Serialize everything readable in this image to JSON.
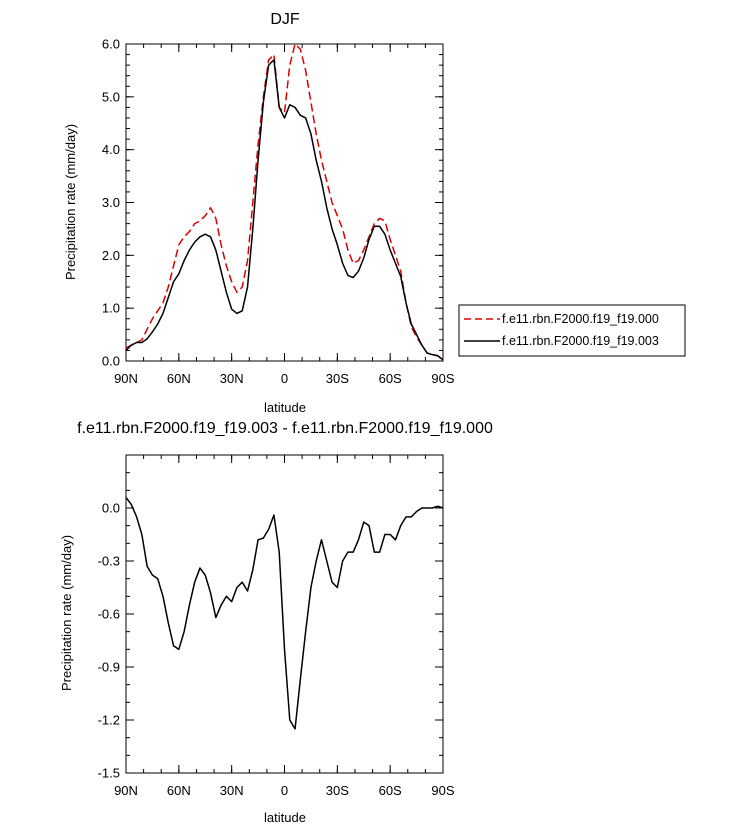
{
  "chart_data": [
    {
      "type": "line",
      "title": "DJF",
      "xlabel": "latitude",
      "ylabel": "Precipitation rate (mm/day)",
      "xlim": [
        -90,
        90
      ],
      "ylim": [
        0,
        6
      ],
      "x_ticks": [
        {
          "value": -90,
          "label": "90N"
        },
        {
          "value": -60,
          "label": "60N"
        },
        {
          "value": -30,
          "label": "30N"
        },
        {
          "value": 0,
          "label": "0"
        },
        {
          "value": 30,
          "label": "30S"
        },
        {
          "value": 60,
          "label": "60S"
        },
        {
          "value": 90,
          "label": "90S"
        }
      ],
      "y_ticks": [
        {
          "value": 0,
          "label": "0.0"
        },
        {
          "value": 1,
          "label": "1.0"
        },
        {
          "value": 2,
          "label": "2.0"
        },
        {
          "value": 3,
          "label": "3.0"
        },
        {
          "value": 4,
          "label": "4.0"
        },
        {
          "value": 5,
          "label": "5.0"
        },
        {
          "value": 6,
          "label": "6.0"
        }
      ],
      "legend_position": "right",
      "series": [
        {
          "name": "f.e11.rbn.F2000.f19_f19.000",
          "color": "#dd0000",
          "dashed": true,
          "x": [
            -90,
            -87,
            -84,
            -81,
            -78,
            -75,
            -72,
            -69,
            -66,
            -63,
            -60,
            -57,
            -54,
            -51,
            -48,
            -45,
            -42,
            -39,
            -36,
            -33,
            -30,
            -27,
            -24,
            -21,
            -18,
            -15,
            -12,
            -9,
            -6,
            -3,
            0,
            3,
            6,
            9,
            12,
            15,
            18,
            21,
            24,
            27,
            30,
            33,
            36,
            39,
            42,
            45,
            48,
            51,
            54,
            57,
            60,
            63,
            66,
            69,
            72,
            75,
            78,
            81,
            84,
            87,
            90
          ],
          "values": [
            0.25,
            0.3,
            0.35,
            0.4,
            0.6,
            0.8,
            0.95,
            1.1,
            1.4,
            1.8,
            2.2,
            2.35,
            2.45,
            2.6,
            2.65,
            2.75,
            2.9,
            2.7,
            2.2,
            1.8,
            1.5,
            1.3,
            1.4,
            1.9,
            3.0,
            4.1,
            5.0,
            5.7,
            5.8,
            4.8,
            4.7,
            5.6,
            6.0,
            5.9,
            5.5,
            4.9,
            4.3,
            3.8,
            3.4,
            3.0,
            2.75,
            2.5,
            2.1,
            1.85,
            1.9,
            2.1,
            2.35,
            2.6,
            2.7,
            2.65,
            2.3,
            2.0,
            1.7,
            1.1,
            0.65,
            0.45,
            0.3,
            0.15,
            0.12,
            0.1,
            0.02
          ]
        },
        {
          "name": "f.e11.rbn.F2000.f19_f19.003",
          "color": "#000000",
          "dashed": false,
          "x": [
            -90,
            -87,
            -84,
            -81,
            -78,
            -75,
            -72,
            -69,
            -66,
            -63,
            -60,
            -57,
            -54,
            -51,
            -48,
            -45,
            -42,
            -39,
            -36,
            -33,
            -30,
            -27,
            -24,
            -21,
            -18,
            -15,
            -12,
            -9,
            -6,
            -3,
            0,
            3,
            6,
            9,
            12,
            15,
            18,
            21,
            24,
            27,
            30,
            33,
            36,
            39,
            42,
            45,
            48,
            51,
            54,
            57,
            60,
            63,
            66,
            69,
            72,
            75,
            78,
            81,
            84,
            87,
            90
          ],
          "values": [
            0.2,
            0.3,
            0.35,
            0.35,
            0.42,
            0.55,
            0.7,
            0.9,
            1.2,
            1.5,
            1.65,
            1.9,
            2.1,
            2.25,
            2.35,
            2.4,
            2.35,
            2.1,
            1.7,
            1.3,
            0.98,
            0.9,
            0.95,
            1.4,
            2.5,
            3.8,
            4.9,
            5.6,
            5.7,
            4.8,
            4.6,
            4.85,
            4.8,
            4.65,
            4.6,
            4.3,
            3.8,
            3.4,
            2.9,
            2.5,
            2.2,
            1.85,
            1.62,
            1.58,
            1.7,
            1.95,
            2.3,
            2.55,
            2.55,
            2.4,
            2.1,
            1.85,
            1.6,
            1.1,
            0.7,
            0.5,
            0.3,
            0.15,
            0.12,
            0.1,
            0.02
          ]
        }
      ]
    },
    {
      "type": "line",
      "title": "f.e11.rbn.F2000.f19_f19.003 - f.e11.rbn.F2000.f19_f19.000",
      "xlabel": "latitude",
      "ylabel": "Precipitation rate (mm/day)",
      "xlim": [
        -90,
        90
      ],
      "ylim": [
        -1.5,
        0.3
      ],
      "x_ticks": [
        {
          "value": -90,
          "label": "90N"
        },
        {
          "value": -60,
          "label": "60N"
        },
        {
          "value": -30,
          "label": "30N"
        },
        {
          "value": 0,
          "label": "0"
        },
        {
          "value": 30,
          "label": "30S"
        },
        {
          "value": 60,
          "label": "60S"
        },
        {
          "value": 90,
          "label": "90S"
        }
      ],
      "y_ticks": [
        {
          "value": -1.5,
          "label": "-1.5"
        },
        {
          "value": -1.2,
          "label": "-1.2"
        },
        {
          "value": -0.9,
          "label": "-0.9"
        },
        {
          "value": -0.6,
          "label": "-0.6"
        },
        {
          "value": -0.3,
          "label": "-0.3"
        },
        {
          "value": 0.0,
          "label": "0.0"
        }
      ],
      "series": [
        {
          "color": "#000000",
          "dashed": false,
          "x": [
            -90,
            -87,
            -84,
            -81,
            -78,
            -75,
            -72,
            -69,
            -66,
            -63,
            -60,
            -57,
            -54,
            -51,
            -48,
            -45,
            -42,
            -39,
            -36,
            -33,
            -30,
            -27,
            -24,
            -21,
            -18,
            -15,
            -12,
            -9,
            -6,
            -3,
            0,
            3,
            6,
            9,
            12,
            15,
            18,
            21,
            24,
            27,
            30,
            33,
            36,
            39,
            42,
            45,
            48,
            51,
            54,
            57,
            60,
            63,
            66,
            69,
            72,
            75,
            78,
            81,
            84,
            87,
            90
          ],
          "values": [
            0.06,
            0.02,
            -0.05,
            -0.15,
            -0.33,
            -0.38,
            -0.4,
            -0.5,
            -0.65,
            -0.78,
            -0.8,
            -0.7,
            -0.55,
            -0.42,
            -0.34,
            -0.38,
            -0.48,
            -0.62,
            -0.55,
            -0.5,
            -0.53,
            -0.45,
            -0.42,
            -0.47,
            -0.35,
            -0.18,
            -0.17,
            -0.12,
            -0.04,
            -0.25,
            -0.8,
            -1.2,
            -1.25,
            -0.97,
            -0.7,
            -0.45,
            -0.3,
            -0.18,
            -0.3,
            -0.42,
            -0.45,
            -0.3,
            -0.25,
            -0.25,
            -0.18,
            -0.08,
            -0.1,
            -0.25,
            -0.25,
            -0.15,
            -0.15,
            -0.18,
            -0.1,
            -0.05,
            -0.05,
            -0.02,
            0.0,
            0.0,
            0.0,
            0.01,
            0.0
          ]
        }
      ]
    }
  ]
}
